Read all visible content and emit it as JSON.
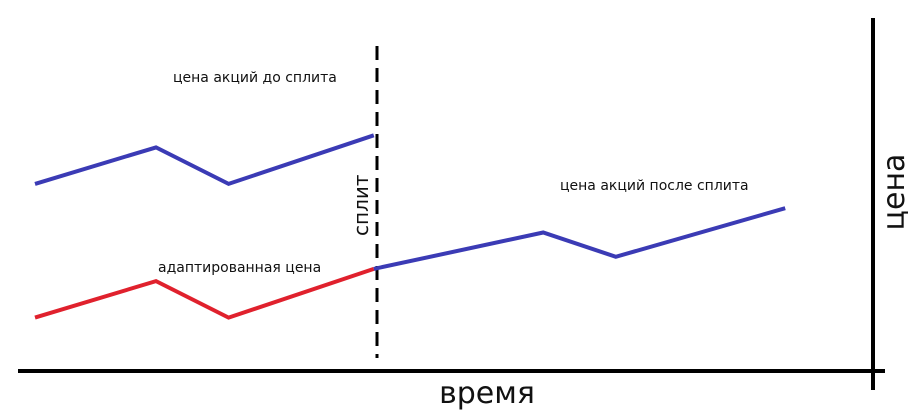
{
  "labels": {
    "price_before": "цена акций до сплита",
    "price_after": "цена акций после сплита",
    "adjusted": "адаптированная цена",
    "split": "сплит",
    "x_axis": "время",
    "y_axis": "цена"
  },
  "colors": {
    "stock_line": "#3b3bb5",
    "adjusted_line": "#e0212d",
    "axis": "#000000"
  },
  "chart_data": {
    "type": "line",
    "title": "",
    "xlabel": "время",
    "ylabel": "цена",
    "series": [
      {
        "name": "цена акций до сплита",
        "values": [
          [
            0,
            7
          ],
          [
            1,
            8.5
          ],
          [
            1.6,
            7
          ],
          [
            2.8,
            9
          ]
        ]
      },
      {
        "name": "адаптированная цена",
        "values": [
          [
            0,
            1.5
          ],
          [
            1,
            3
          ],
          [
            1.6,
            1.5
          ],
          [
            2.8,
            3.5
          ]
        ]
      },
      {
        "name": "цена акций после сплита",
        "values": [
          [
            2.8,
            3.5
          ],
          [
            4.2,
            5
          ],
          [
            4.8,
            4
          ],
          [
            6.2,
            6
          ]
        ]
      }
    ],
    "split_x": 2.8
  }
}
